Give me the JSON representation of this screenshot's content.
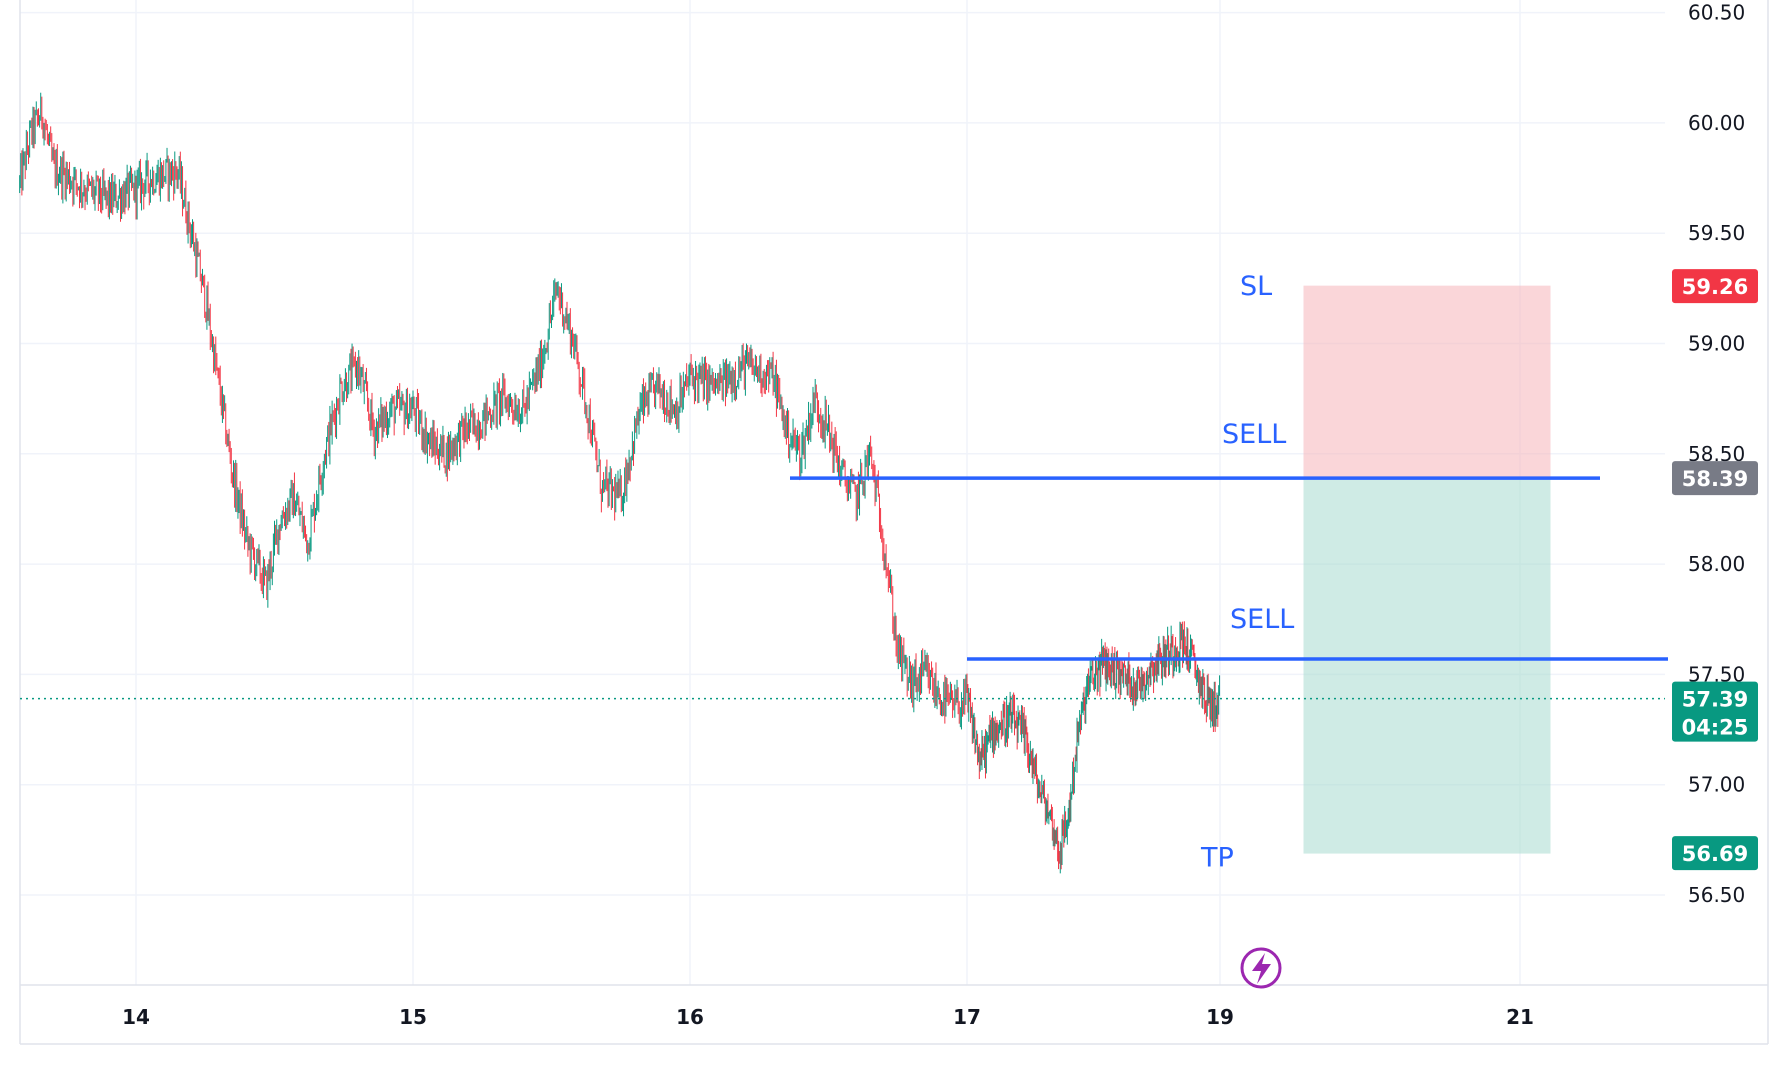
{
  "chart_data": {
    "type": "candlestick",
    "symbol": "",
    "x_tick_labels": [
      "14",
      "15",
      "16",
      "17",
      "19",
      "21"
    ],
    "y_tick_labels": [
      "60.50",
      "60.00",
      "59.50",
      "59.00",
      "58.50",
      "58.00",
      "57.50",
      "57.00",
      "56.50"
    ],
    "ylim": [
      56.1,
      60.55
    ],
    "grid": true,
    "current_price": 57.39,
    "countdown": "04:25",
    "price_tags": [
      {
        "label": "59.26",
        "value": 59.26,
        "color": "#f23645"
      },
      {
        "label": "58.39",
        "value": 58.39,
        "color": "#787b86"
      },
      {
        "label": "56.69",
        "value": 56.69,
        "color": "#089981"
      }
    ],
    "current_tag": {
      "label": "57.39",
      "value": 57.39,
      "color": "#089981"
    },
    "horizontal_lines": [
      {
        "value": 58.39,
        "x_start_day": 16.37,
        "x_end_day": 21.3,
        "color": "#2962ff"
      },
      {
        "value": 57.57,
        "x_start_day": 17.0,
        "x_end_day": 21.55,
        "color": "#2962ff"
      }
    ],
    "position_box": {
      "x_start_day": 19.6,
      "x_end_day": 21.1,
      "stop_loss": 59.26,
      "entry": 58.39,
      "take_profit": 56.69,
      "loss_color": "#f7b6bb",
      "profit_color": "#a8dcd0"
    },
    "annotations": [
      {
        "text": "SL",
        "x_day": 19.15,
        "y_value": 59.22
      },
      {
        "text": "SELL",
        "x_day": 19.15,
        "y_value": 58.55
      },
      {
        "text": "SELL",
        "x_day": 19.18,
        "y_value": 57.71
      },
      {
        "text": "TP",
        "x_day": 19.0,
        "y_value": 56.63
      }
    ],
    "price_path": [
      {
        "t": 13.58,
        "p": 59.72
      },
      {
        "t": 13.62,
        "p": 59.95
      },
      {
        "t": 13.66,
        "p": 60.05
      },
      {
        "t": 13.7,
        "p": 59.8
      },
      {
        "t": 13.76,
        "p": 59.75
      },
      {
        "t": 13.82,
        "p": 59.7
      },
      {
        "t": 13.9,
        "p": 59.65
      },
      {
        "t": 14.0,
        "p": 59.7
      },
      {
        "t": 14.05,
        "p": 59.75
      },
      {
        "t": 14.15,
        "p": 59.78
      },
      {
        "t": 14.2,
        "p": 59.5
      },
      {
        "t": 14.25,
        "p": 59.2
      },
      {
        "t": 14.3,
        "p": 58.8
      },
      {
        "t": 14.35,
        "p": 58.4
      },
      {
        "t": 14.4,
        "p": 58.1
      },
      {
        "t": 14.47,
        "p": 57.9
      },
      {
        "t": 14.52,
        "p": 58.2
      },
      {
        "t": 14.57,
        "p": 58.3
      },
      {
        "t": 14.62,
        "p": 58.1
      },
      {
        "t": 14.68,
        "p": 58.5
      },
      {
        "t": 14.74,
        "p": 58.8
      },
      {
        "t": 14.8,
        "p": 58.9
      },
      {
        "t": 14.86,
        "p": 58.6
      },
      {
        "t": 14.92,
        "p": 58.7
      },
      {
        "t": 15.0,
        "p": 58.7
      },
      {
        "t": 15.06,
        "p": 58.55
      },
      {
        "t": 15.12,
        "p": 58.5
      },
      {
        "t": 15.18,
        "p": 58.6
      },
      {
        "t": 15.25,
        "p": 58.65
      },
      {
        "t": 15.32,
        "p": 58.75
      },
      {
        "t": 15.4,
        "p": 58.7
      },
      {
        "t": 15.46,
        "p": 58.9
      },
      {
        "t": 15.52,
        "p": 59.25
      },
      {
        "t": 15.58,
        "p": 59.0
      },
      {
        "t": 15.63,
        "p": 58.7
      },
      {
        "t": 15.68,
        "p": 58.35
      },
      {
        "t": 15.75,
        "p": 58.3
      },
      {
        "t": 15.82,
        "p": 58.7
      },
      {
        "t": 15.88,
        "p": 58.8
      },
      {
        "t": 15.95,
        "p": 58.7
      },
      {
        "t": 16.0,
        "p": 58.85
      },
      {
        "t": 16.1,
        "p": 58.8
      },
      {
        "t": 16.2,
        "p": 58.9
      },
      {
        "t": 16.3,
        "p": 58.85
      },
      {
        "t": 16.35,
        "p": 58.6
      },
      {
        "t": 16.4,
        "p": 58.5
      },
      {
        "t": 16.45,
        "p": 58.75
      },
      {
        "t": 16.5,
        "p": 58.6
      },
      {
        "t": 16.55,
        "p": 58.4
      },
      {
        "t": 16.6,
        "p": 58.3
      },
      {
        "t": 16.65,
        "p": 58.5
      },
      {
        "t": 16.7,
        "p": 58.1
      },
      {
        "t": 16.75,
        "p": 57.6
      },
      {
        "t": 16.8,
        "p": 57.45
      },
      {
        "t": 16.85,
        "p": 57.5
      },
      {
        "t": 16.9,
        "p": 57.4
      },
      {
        "t": 16.95,
        "p": 57.35
      },
      {
        "t": 17.0,
        "p": 57.38
      },
      {
        "t": 17.06,
        "p": 57.1
      },
      {
        "t": 17.12,
        "p": 57.25
      },
      {
        "t": 17.2,
        "p": 57.3
      },
      {
        "t": 17.27,
        "p": 57.2
      },
      {
        "t": 17.32,
        "p": 57.0
      },
      {
        "t": 17.38,
        "p": 56.85
      },
      {
        "t": 17.42,
        "p": 56.7
      },
      {
        "t": 17.46,
        "p": 56.85
      },
      {
        "t": 17.5,
        "p": 57.2
      },
      {
        "t": 17.55,
        "p": 57.45
      },
      {
        "t": 17.62,
        "p": 57.55
      },
      {
        "t": 17.7,
        "p": 57.5
      },
      {
        "t": 17.78,
        "p": 57.45
      },
      {
        "t": 17.85,
        "p": 57.55
      },
      {
        "t": 17.92,
        "p": 57.6
      },
      {
        "t": 17.98,
        "p": 57.65
      },
      {
        "t": 18.03,
        "p": 57.55
      },
      {
        "t": 18.08,
        "p": 57.4
      },
      {
        "t": 18.12,
        "p": 57.35
      },
      {
        "t": 18.15,
        "p": 57.39
      }
    ]
  }
}
